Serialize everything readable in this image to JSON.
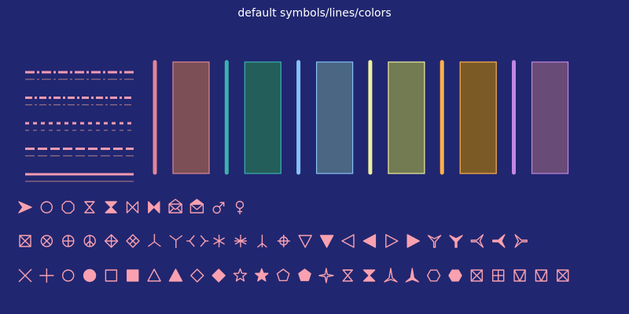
{
  "chart_data": {
    "type": "other",
    "title": "default symbols/lines/colors",
    "background_color": "#212670",
    "text_color": "#ffffff",
    "symbol_color": "#f9a1b0",
    "line_styles": [
      {
        "name": "longdash-dot",
        "primary_color": "#f29bb2",
        "secondary_color": "#987080"
      },
      {
        "name": "dash-dot",
        "primary_color": "#f29bb2",
        "secondary_color": "#987080"
      },
      {
        "name": "short-dash",
        "primary_color": "#f29bb2",
        "secondary_color": "#987080"
      },
      {
        "name": "long-dash",
        "primary_color": "#f29bb2",
        "secondary_color": "#987080"
      },
      {
        "name": "solid",
        "primary_color": "#f29bb2",
        "secondary_color": "#987080"
      }
    ],
    "color_swatches": [
      {
        "line_color": "#e18696",
        "fill_color": "#7b4f55",
        "border_color": "#e18696"
      },
      {
        "line_color": "#3ab3ae",
        "fill_color": "#245e5b",
        "border_color": "#3ab3ae"
      },
      {
        "line_color": "#86c2f7",
        "fill_color": "#4a6683",
        "border_color": "#86c2f7"
      },
      {
        "line_color": "#eef0a0",
        "fill_color": "#737b52",
        "border_color": "#eef0a0"
      },
      {
        "line_color": "#ffb24c",
        "fill_color": "#7c5a26",
        "border_color": "#ffb24c"
      },
      {
        "line_color": "#c187e2",
        "fill_color": "#684b76",
        "border_color": "#c187e2"
      }
    ],
    "symbol_rows": [
      [
        "arrowhead",
        "circle-open",
        "octagon-open",
        "hourglass-open",
        "hourglass-filled",
        "bowtie-open",
        "bowtie-filled",
        "envelope-open",
        "envelope-filled",
        "male",
        "female"
      ],
      [
        "square-x",
        "circle-x",
        "circle-plus",
        "peace",
        "diamond-plus",
        "diamond-x",
        "y-down",
        "y-up",
        "angle-pair",
        "asterisk",
        "asterisk-bold",
        "tripod",
        "circle-cross",
        "triangle-down-open",
        "triangle-down-filled",
        "triangle-left-open",
        "triangle-left-filled",
        "triangle-right-open",
        "triangle-right-filled",
        "y-down-open",
        "y-down-filled",
        "y-left-open",
        "y-left-filled",
        "y-right-open"
      ],
      [
        "x",
        "plus",
        "circle-open",
        "circle-filled",
        "square-open",
        "square-filled",
        "triangle-open",
        "triangle-filled",
        "diamond-open",
        "diamond-filled",
        "star-open",
        "star-filled",
        "pentagon-open",
        "pentagon-filled",
        "star4",
        "hourglass-open",
        "hourglass-filled",
        "tripod-up-open",
        "tripod-up-filled",
        "hexagon-open",
        "hexagon-filled",
        "square-x",
        "square-plus",
        "square-slash-left",
        "square-slash-mid",
        "square-slash-right"
      ]
    ]
  }
}
